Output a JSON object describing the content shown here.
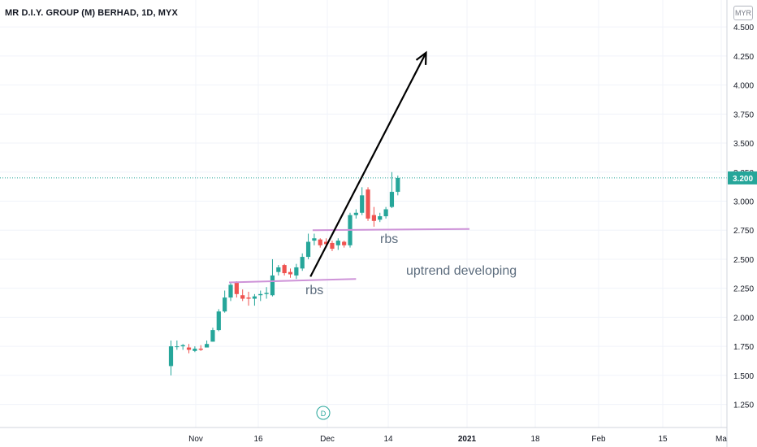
{
  "title": "MR D.I.Y. GROUP (M) BERHAD, 1D, MYX",
  "currency": "MYR",
  "price_tag": "3.200",
  "colors": {
    "up": "#26a69a",
    "down": "#ef5350",
    "grid": "#f0f3fa",
    "axis_text": "#131722",
    "price_tag_bg": "#26a69a",
    "support_line": "#ce93d8",
    "arrow": "#000000",
    "annotation_text": "#5d6d7e",
    "dividend_marker": "#26a69a"
  },
  "chart_data": {
    "type": "candlestick",
    "x_labels": [
      "Nov",
      "16",
      "Dec",
      "14",
      "2021",
      "18",
      "Feb",
      "15",
      "Ma"
    ],
    "y_ticks": [
      "1.250",
      "1.500",
      "1.750",
      "2.000",
      "2.250",
      "2.500",
      "2.750",
      "3.000",
      "3.250",
      "3.500",
      "3.750",
      "4.000",
      "4.250",
      "4.500"
    ],
    "ylim": [
      1.1,
      4.55
    ],
    "last_price": 3.2,
    "candles": [
      {
        "o": 1.58,
        "h": 1.8,
        "l": 1.5,
        "c": 1.75
      },
      {
        "o": 1.75,
        "h": 1.8,
        "l": 1.72,
        "c": 1.75
      },
      {
        "o": 1.75,
        "h": 1.77,
        "l": 1.72,
        "c": 1.76
      },
      {
        "o": 1.74,
        "h": 1.77,
        "l": 1.69,
        "c": 1.72
      },
      {
        "o": 1.71,
        "h": 1.75,
        "l": 1.7,
        "c": 1.73
      },
      {
        "o": 1.73,
        "h": 1.76,
        "l": 1.71,
        "c": 1.72
      },
      {
        "o": 1.74,
        "h": 1.8,
        "l": 1.74,
        "c": 1.77
      },
      {
        "o": 1.79,
        "h": 1.91,
        "l": 1.79,
        "c": 1.89
      },
      {
        "o": 1.89,
        "h": 2.07,
        "l": 1.88,
        "c": 2.05
      },
      {
        "o": 2.05,
        "h": 2.23,
        "l": 2.04,
        "c": 2.17
      },
      {
        "o": 2.17,
        "h": 2.3,
        "l": 2.14,
        "c": 2.28
      },
      {
        "o": 2.3,
        "h": 2.31,
        "l": 2.17,
        "c": 2.2
      },
      {
        "o": 2.19,
        "h": 2.24,
        "l": 2.14,
        "c": 2.16
      },
      {
        "o": 2.17,
        "h": 2.22,
        "l": 2.1,
        "c": 2.16
      },
      {
        "o": 2.16,
        "h": 2.2,
        "l": 2.1,
        "c": 2.18
      },
      {
        "o": 2.19,
        "h": 2.23,
        "l": 2.14,
        "c": 2.2
      },
      {
        "o": 2.2,
        "h": 2.26,
        "l": 2.16,
        "c": 2.21
      },
      {
        "o": 2.19,
        "h": 2.5,
        "l": 2.18,
        "c": 2.36
      },
      {
        "o": 2.39,
        "h": 2.45,
        "l": 2.36,
        "c": 2.43
      },
      {
        "o": 2.45,
        "h": 2.46,
        "l": 2.36,
        "c": 2.38
      },
      {
        "o": 2.39,
        "h": 2.42,
        "l": 2.34,
        "c": 2.37
      },
      {
        "o": 2.36,
        "h": 2.46,
        "l": 2.33,
        "c": 2.43
      },
      {
        "o": 2.42,
        "h": 2.55,
        "l": 2.4,
        "c": 2.52
      },
      {
        "o": 2.52,
        "h": 2.72,
        "l": 2.5,
        "c": 2.65
      },
      {
        "o": 2.66,
        "h": 2.72,
        "l": 2.62,
        "c": 2.68
      },
      {
        "o": 2.67,
        "h": 2.68,
        "l": 2.6,
        "c": 2.62
      },
      {
        "o": 2.65,
        "h": 2.68,
        "l": 2.6,
        "c": 2.63
      },
      {
        "o": 2.64,
        "h": 2.66,
        "l": 2.57,
        "c": 2.59
      },
      {
        "o": 2.62,
        "h": 2.68,
        "l": 2.58,
        "c": 2.66
      },
      {
        "o": 2.65,
        "h": 2.66,
        "l": 2.6,
        "c": 2.62
      },
      {
        "o": 2.62,
        "h": 2.9,
        "l": 2.6,
        "c": 2.88
      },
      {
        "o": 2.88,
        "h": 2.93,
        "l": 2.85,
        "c": 2.9
      },
      {
        "o": 2.9,
        "h": 3.12,
        "l": 2.88,
        "c": 3.05
      },
      {
        "o": 3.1,
        "h": 3.12,
        "l": 2.83,
        "c": 2.85
      },
      {
        "o": 2.88,
        "h": 2.95,
        "l": 2.78,
        "c": 2.83
      },
      {
        "o": 2.84,
        "h": 2.9,
        "l": 2.82,
        "c": 2.87
      },
      {
        "o": 2.87,
        "h": 2.95,
        "l": 2.85,
        "c": 2.93
      },
      {
        "o": 2.95,
        "h": 3.25,
        "l": 2.94,
        "c": 3.08
      },
      {
        "o": 3.08,
        "h": 3.22,
        "l": 3.05,
        "c": 3.2
      }
    ],
    "support_lines": [
      {
        "from_bar": 10,
        "from_price": 2.3,
        "to_bar": 31,
        "to_price": 2.33
      },
      {
        "from_bar": 24,
        "from_price": 2.75,
        "to_bar": 50,
        "to_price": 2.76
      }
    ],
    "arrow": {
      "from_bar": 22,
      "from_price": 2.35,
      "to_bar": 40,
      "to_price": 4.25
    },
    "annotations": [
      "rbs",
      "rbs",
      "uptrend developing"
    ],
    "dividend_marker": {
      "bar": 24,
      "label": "D"
    }
  }
}
